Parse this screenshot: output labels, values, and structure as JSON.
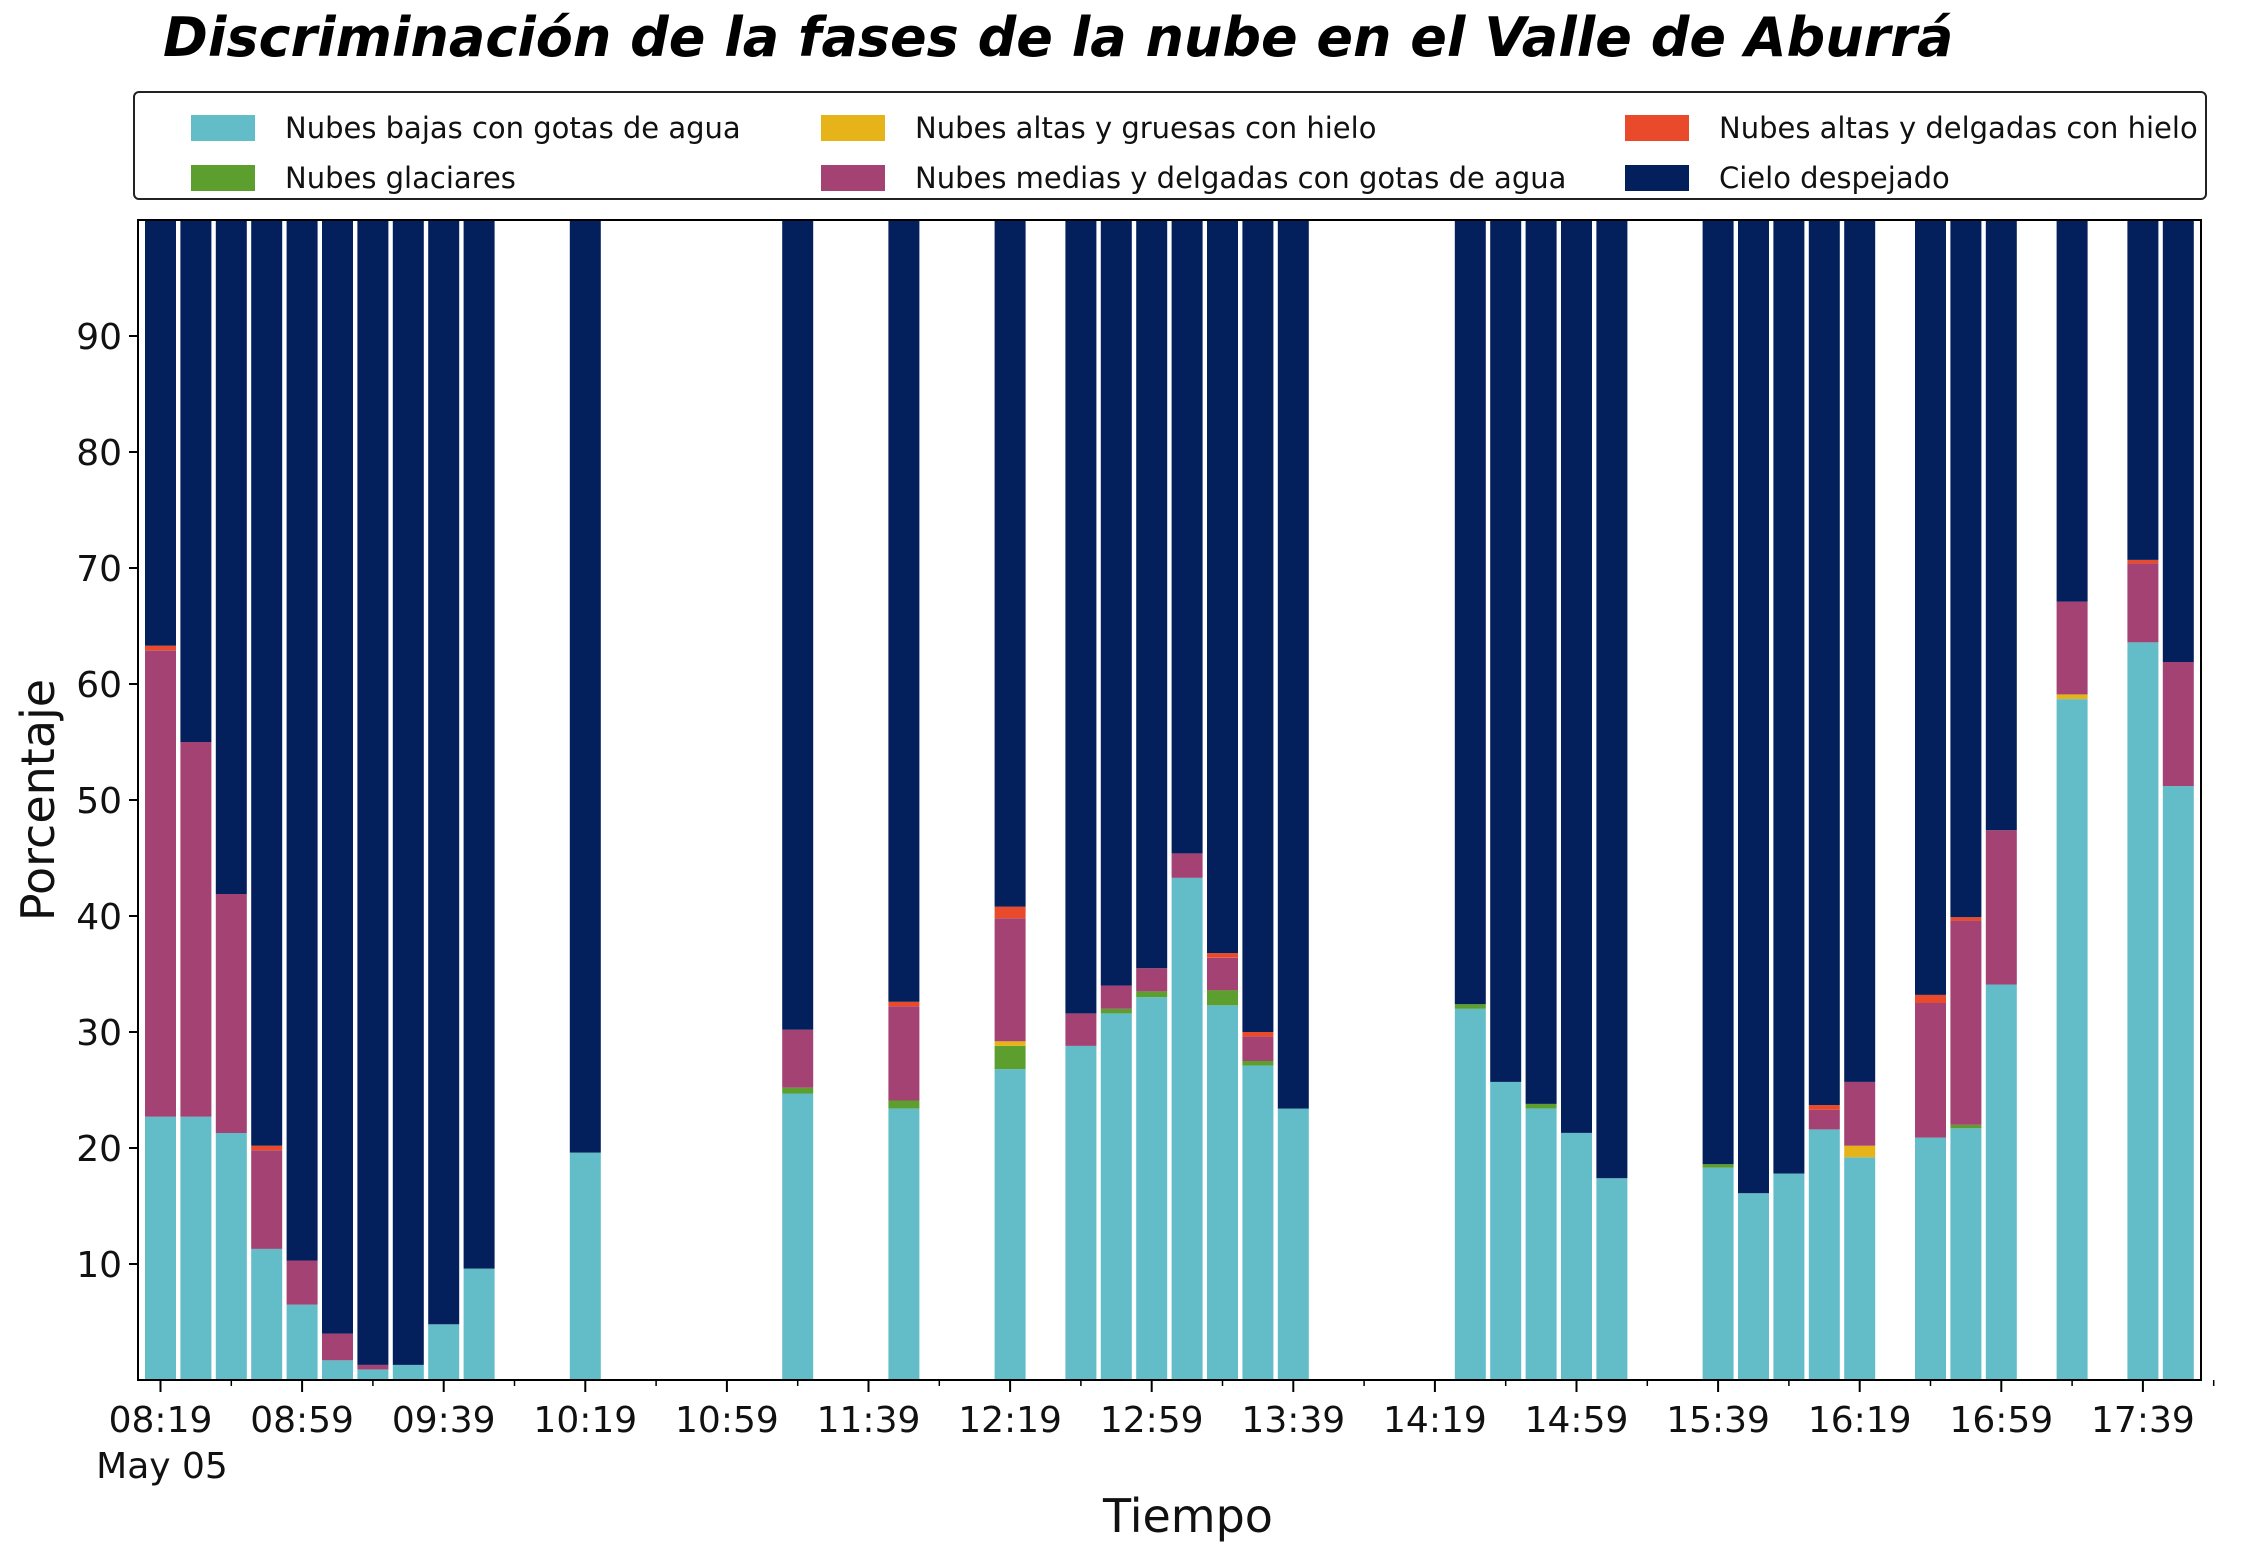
{
  "chart_data": {
    "type": "bar",
    "stacked": true,
    "title": "Discriminación de la fases de la nube en el Valle de Aburrá",
    "xlabel": "Tiempo",
    "ylabel": "Porcentaje",
    "ylim": [
      0,
      100
    ],
    "yticks": [
      10,
      20,
      30,
      40,
      50,
      60,
      70,
      80,
      90
    ],
    "grid": false,
    "legend_position": "top",
    "x_date_label": "May 05",
    "x_tick_labels": [
      "08:19",
      "08:59",
      "09:39",
      "10:19",
      "10:59",
      "11:39",
      "12:19",
      "12:59",
      "13:39",
      "14:19",
      "14:59",
      "15:39",
      "16:19",
      "16:59",
      "17:39"
    ],
    "x_tick_positions": [
      0,
      4,
      8,
      12,
      16,
      20,
      24,
      28,
      32,
      36,
      40,
      44,
      48,
      52,
      56
    ],
    "x_minor_tick_positions": [
      2,
      6,
      10,
      14,
      18,
      22,
      26,
      30,
      34,
      38,
      42,
      46,
      50,
      54,
      58
    ],
    "x": [
      0,
      1,
      2,
      3,
      4,
      5,
      6,
      7,
      8,
      9,
      12,
      18,
      21,
      24,
      26,
      27,
      28,
      29,
      30,
      31,
      32,
      37,
      38,
      39,
      40,
      41,
      44,
      45,
      46,
      47,
      48,
      50,
      51,
      52,
      54,
      56,
      57
    ],
    "series": [
      {
        "name": "Nubes bajas con gotas de agua",
        "color": "#63bdc8",
        "values": [
          22.7,
          22.7,
          21.3,
          11.3,
          6.5,
          1.7,
          0.9,
          1.3,
          4.8,
          9.6,
          19.6,
          24.7,
          23.4,
          26.8,
          28.8,
          31.6,
          33.0,
          43.3,
          32.3,
          27.1,
          23.4,
          32.0,
          25.7,
          23.4,
          21.3,
          17.4,
          18.3,
          16.1,
          17.8,
          21.6,
          19.2,
          20.9,
          21.7,
          34.1,
          58.7,
          63.6,
          51.2
        ]
      },
      {
        "name": "Nubes glaciares",
        "color": "#5c9f2e",
        "values": [
          0,
          0,
          0,
          0,
          0,
          0,
          0,
          0,
          0,
          0,
          0,
          0.5,
          0.7,
          2.0,
          0,
          0.4,
          0.5,
          0,
          1.3,
          0.4,
          0,
          0.4,
          0,
          0.4,
          0,
          0,
          0.3,
          0,
          0,
          0,
          0,
          0,
          0.3,
          0,
          0,
          0,
          0
        ]
      },
      {
        "name": "Nubes altas y gruesas con hielo",
        "color": "#e6b319",
        "values": [
          0,
          0,
          0,
          0,
          0,
          0,
          0,
          0,
          0,
          0,
          0,
          0,
          0,
          0.4,
          0,
          0,
          0,
          0,
          0,
          0,
          0,
          0,
          0,
          0,
          0,
          0,
          0,
          0,
          0,
          0,
          1.0,
          0,
          0,
          0,
          0.4,
          0,
          0
        ]
      },
      {
        "name": "Nubes medias y delgadas con gotas de agua",
        "color": "#a34273",
        "values": [
          40.2,
          32.3,
          20.6,
          8.5,
          3.8,
          2.3,
          0.4,
          0,
          0,
          0,
          0,
          5.0,
          8.1,
          10.6,
          2.8,
          2.0,
          2.0,
          2.1,
          2.8,
          2.1,
          0,
          0,
          0,
          0,
          0,
          0,
          0,
          0,
          0,
          1.7,
          5.5,
          11.6,
          17.6,
          13.3,
          8.0,
          6.8,
          10.7
        ]
      },
      {
        "name": "Nubes altas y delgadas con hielo",
        "color": "#e84a2b",
        "values": [
          0.4,
          0,
          0,
          0.4,
          0,
          0,
          0,
          0,
          0,
          0,
          0,
          0,
          0.4,
          1.0,
          0,
          0,
          0,
          0,
          0.4,
          0.4,
          0,
          0,
          0,
          0,
          0,
          0,
          0,
          0,
          0,
          0.4,
          0,
          0.7,
          0.3,
          0,
          0,
          0.3,
          0
        ]
      },
      {
        "name": "Cielo despejado",
        "color": "#04205c",
        "values": [
          36.7,
          45.0,
          58.1,
          79.8,
          89.7,
          96.0,
          98.7,
          98.7,
          95.2,
          90.4,
          80.4,
          69.8,
          67.4,
          59.2,
          68.4,
          66.0,
          64.5,
          54.6,
          63.2,
          70.0,
          76.6,
          67.6,
          74.3,
          76.2,
          78.7,
          82.6,
          81.4,
          83.9,
          82.2,
          76.3,
          74.3,
          66.8,
          60.1,
          52.6,
          32.9,
          29.3,
          38.1
        ]
      }
    ]
  }
}
